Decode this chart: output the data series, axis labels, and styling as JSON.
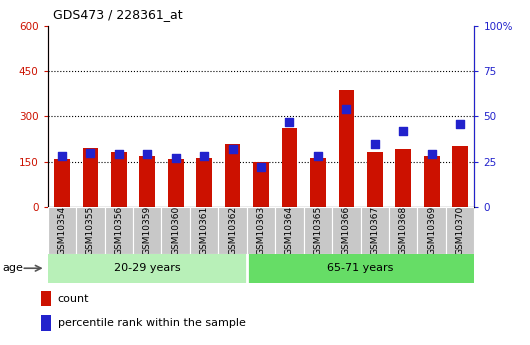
{
  "title": "GDS473 / 228361_at",
  "samples": [
    "GSM10354",
    "GSM10355",
    "GSM10356",
    "GSM10359",
    "GSM10360",
    "GSM10361",
    "GSM10362",
    "GSM10363",
    "GSM10364",
    "GSM10365",
    "GSM10366",
    "GSM10367",
    "GSM10368",
    "GSM10369",
    "GSM10370"
  ],
  "counts": [
    160,
    195,
    183,
    170,
    158,
    162,
    208,
    148,
    262,
    162,
    388,
    182,
    192,
    170,
    202
  ],
  "percentiles": [
    28,
    30,
    29,
    29,
    27,
    28,
    32,
    22,
    47,
    28,
    54,
    35,
    42,
    29,
    46
  ],
  "groups": [
    {
      "label": "20-29 years",
      "start": 0,
      "end": 7,
      "color": "#b8f0b8"
    },
    {
      "label": "65-71 years",
      "start": 7,
      "end": 15,
      "color": "#66dd66"
    }
  ],
  "age_label": "age",
  "ylim_left": [
    0,
    600
  ],
  "ylim_right": [
    0,
    100
  ],
  "yticks_left": [
    0,
    150,
    300,
    450,
    600
  ],
  "yticks_right": [
    0,
    25,
    50,
    75,
    100
  ],
  "ytick_labels_left": [
    "0",
    "150",
    "300",
    "450",
    "600"
  ],
  "ytick_labels_right": [
    "0",
    "25",
    "50",
    "75",
    "100%"
  ],
  "bar_color": "#cc1100",
  "dot_color": "#2222cc",
  "grid_color": "#000000",
  "bg_color": "#ffffff",
  "tick_area_color": "#c8c8c8",
  "bar_width": 0.55,
  "dot_size": 28
}
